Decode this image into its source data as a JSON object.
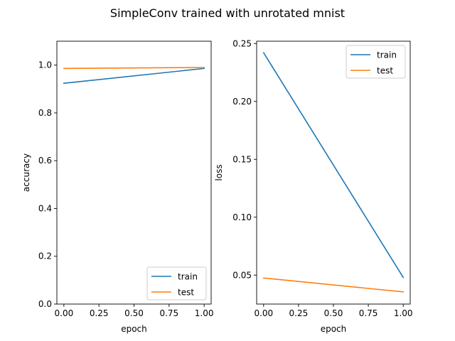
{
  "figure": {
    "suptitle": "SimpleConv trained with unrotated mnist"
  },
  "chart_data": [
    {
      "type": "line",
      "xlabel": "epoch",
      "ylabel": "accuracy",
      "xlim": [
        -0.05,
        1.05
      ],
      "ylim": [
        0.0,
        1.1
      ],
      "xticks": [
        0.0,
        0.25,
        0.5,
        0.75,
        1.0
      ],
      "xtick_labels": [
        "0.00",
        "0.25",
        "0.50",
        "0.75",
        "1.00"
      ],
      "yticks": [
        0.0,
        0.2,
        0.4,
        0.6,
        0.8,
        1.0
      ],
      "ytick_labels": [
        "0.0",
        "0.2",
        "0.4",
        "0.6",
        "0.8",
        "1.0"
      ],
      "legend_loc": "lower right",
      "grid": false,
      "x": [
        0,
        1
      ],
      "series": [
        {
          "name": "train",
          "color": "#1f77b4",
          "values": [
            0.924,
            0.986
          ]
        },
        {
          "name": "test",
          "color": "#ff7f0e",
          "values": [
            0.986,
            0.99
          ]
        }
      ]
    },
    {
      "type": "line",
      "xlabel": "epoch",
      "ylabel": "loss",
      "xlim": [
        -0.05,
        1.05
      ],
      "ylim": [
        0.025,
        0.252
      ],
      "xticks": [
        0.0,
        0.25,
        0.5,
        0.75,
        1.0
      ],
      "xtick_labels": [
        "0.00",
        "0.25",
        "0.50",
        "0.75",
        "1.00"
      ],
      "yticks": [
        0.05,
        0.1,
        0.15,
        0.2,
        0.25
      ],
      "ytick_labels": [
        "0.05",
        "0.10",
        "0.15",
        "0.20",
        "0.25"
      ],
      "legend_loc": "upper right",
      "grid": false,
      "x": [
        0,
        1
      ],
      "series": [
        {
          "name": "train",
          "color": "#1f77b4",
          "values": [
            0.242,
            0.048
          ]
        },
        {
          "name": "test",
          "color": "#ff7f0e",
          "values": [
            0.0475,
            0.0355
          ]
        }
      ]
    }
  ]
}
